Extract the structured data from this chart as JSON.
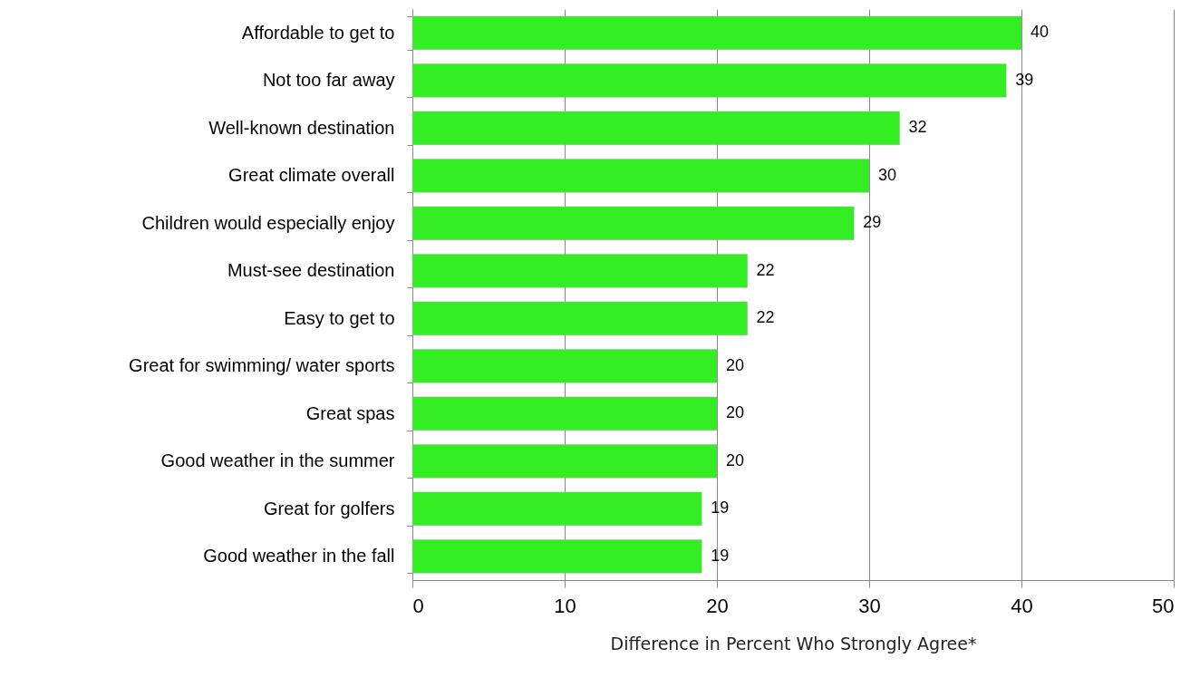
{
  "chart_data": {
    "type": "bar",
    "orientation": "horizontal",
    "xlabel": "Difference in Percent Who Strongly Agree*",
    "categories": [
      "Affordable to get to",
      "Not too far away",
      "Well-known destination",
      "Great climate overall",
      "Children would especially enjoy",
      "Must-see destination",
      "Easy to get to",
      "Great for swimming/ water sports",
      "Great spas",
      "Good weather in the summer",
      "Great for golfers",
      "Good weather in the fall"
    ],
    "values": [
      40,
      39,
      32,
      30,
      29,
      22,
      22,
      20,
      20,
      20,
      19,
      19
    ],
    "color": "#33ee22",
    "xlim": [
      0,
      50
    ],
    "xticks": [
      0,
      10,
      20,
      30,
      40,
      50
    ],
    "grid": "x",
    "data_labels": true
  }
}
